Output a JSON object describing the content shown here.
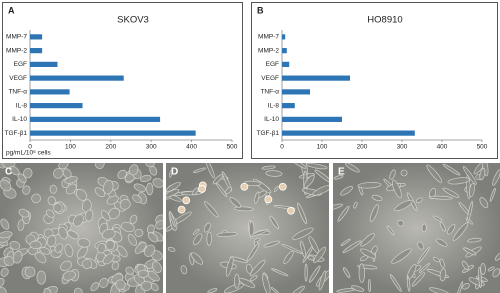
{
  "chart_data": [
    {
      "type": "bar",
      "orientation": "horizontal",
      "panel_label": "A",
      "title": "SKOV3",
      "categories": [
        "MMP-7",
        "MMP-2",
        "EGF",
        "VEGF",
        "TNF-α",
        "IL-8",
        "IL-10",
        "TGF-β1"
      ],
      "values": [
        30,
        30,
        68,
        232,
        98,
        130,
        322,
        410
      ],
      "color": "#2e75b6",
      "xlim": [
        0,
        500
      ],
      "xticks": [
        0,
        100,
        200,
        300,
        400,
        500
      ],
      "x_label": "pg/mL/10⁶ cells"
    },
    {
      "type": "bar",
      "orientation": "horizontal",
      "panel_label": "B",
      "title": "HO8910",
      "categories": [
        "MMP-7",
        "MMP-2",
        "EGF",
        "VEGF",
        "TNF-α",
        "IL-8",
        "IL-10",
        "TGF-β1"
      ],
      "values": [
        8,
        12,
        18,
        170,
        70,
        32,
        150,
        332
      ],
      "color": "#2e75b6",
      "xlim": [
        0,
        500
      ],
      "xticks": [
        0,
        100,
        200,
        300,
        400,
        500
      ]
    }
  ],
  "images": [
    {
      "label": "C"
    },
    {
      "label": "D"
    },
    {
      "label": "E"
    }
  ]
}
